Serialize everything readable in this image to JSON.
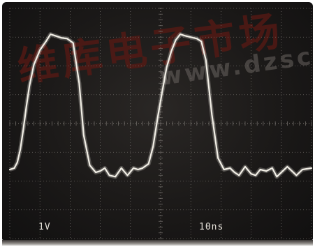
{
  "watermark": {
    "cn_text": "维库电子市场",
    "url_text": "www.dzsc.c"
  },
  "readouts": {
    "volts_per_div": "1V",
    "time_per_div": "10ns"
  },
  "colors": {
    "trace": "#f2efe6",
    "grid": "#6e6a66",
    "screen": "#1b1918"
  },
  "chart_data": {
    "type": "line",
    "grid": true,
    "x_divisions": 10,
    "y_divisions": 8,
    "x_unit": "ns",
    "y_unit": "V",
    "x_scale_per_div": 10,
    "y_scale_per_div": 1,
    "xlim": [
      0,
      100
    ],
    "ylim": [
      -4,
      4
    ],
    "series": [
      {
        "x": [
          0,
          1.5,
          2.5,
          3.5,
          4.5,
          5.5,
          6.5,
          8,
          10,
          12,
          13.5,
          15,
          17,
          19,
          21,
          23,
          24.5,
          26.5,
          28.5,
          30,
          31.5,
          33,
          35,
          37,
          39,
          41,
          42.5,
          44,
          46,
          47.5,
          49,
          50.5,
          52,
          53.5,
          55,
          56.5,
          58,
          60,
          62,
          63.5,
          65,
          67,
          69,
          71,
          73,
          74.5,
          76,
          78,
          80,
          81.5,
          83,
          85,
          87,
          88.5,
          90,
          92,
          93.5,
          95,
          97,
          100
        ],
        "y": [
          -1.6,
          -1.55,
          -1.35,
          -0.9,
          -0.2,
          0.6,
          1.3,
          2.05,
          2.55,
          2.85,
          3.1,
          3.05,
          2.98,
          2.95,
          2.8,
          1.4,
          -0.4,
          -1.45,
          -1.7,
          -1.65,
          -1.55,
          -1.8,
          -1.85,
          -1.55,
          -1.8,
          -1.55,
          -1.6,
          -1.55,
          -1.4,
          -0.8,
          0.2,
          1.1,
          1.95,
          2.5,
          2.9,
          3.1,
          3.05,
          3.0,
          2.95,
          2.85,
          2.2,
          0.3,
          -1.2,
          -1.6,
          -1.55,
          -1.7,
          -1.8,
          -1.5,
          -1.75,
          -1.8,
          -1.6,
          -1.65,
          -1.55,
          -1.85,
          -1.7,
          -1.5,
          -1.65,
          -1.8,
          -1.6,
          -1.55
        ]
      }
    ]
  }
}
